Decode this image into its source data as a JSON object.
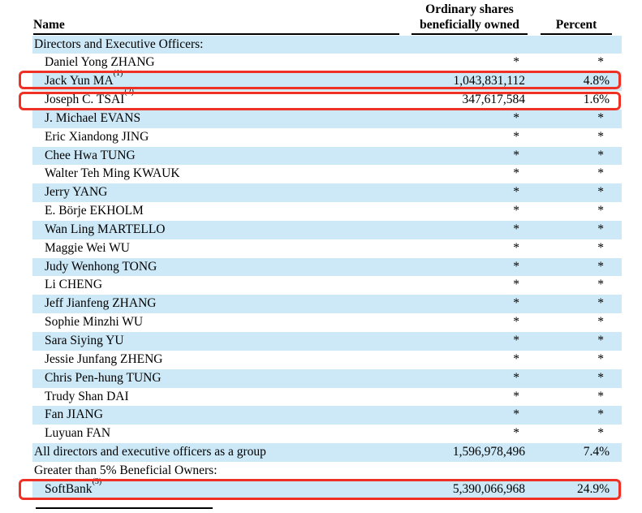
{
  "header": {
    "name_label": "Name",
    "shares_label_line1": "Ordinary shares",
    "shares_label_line2": "beneficially owned",
    "percent_label": "Percent"
  },
  "colors": {
    "row_highlight": "#cde9f7",
    "annotation_box": "#ee3124",
    "text": "#000000"
  },
  "rows": [
    {
      "name": "Directors and Executive Officers:",
      "sup": "",
      "shares": "",
      "percent": "",
      "indent": false,
      "highlight": true,
      "annotated": false
    },
    {
      "name": "Daniel Yong ZHANG",
      "sup": "",
      "shares": "*",
      "percent": "*",
      "indent": true,
      "highlight": false,
      "annotated": false
    },
    {
      "name": "Jack Yun MA",
      "sup": "(1)",
      "shares": "1,043,831,112",
      "percent": "4.8%",
      "indent": true,
      "highlight": true,
      "annotated": true
    },
    {
      "name": "Joseph C. TSAI",
      "sup": "(2)",
      "shares": "347,617,584",
      "percent": "1.6%",
      "indent": true,
      "highlight": false,
      "annotated": true
    },
    {
      "name": "J. Michael EVANS",
      "sup": "",
      "shares": "*",
      "percent": "*",
      "indent": true,
      "highlight": true,
      "annotated": false
    },
    {
      "name": "Eric Xiandong JING",
      "sup": "",
      "shares": "*",
      "percent": "*",
      "indent": true,
      "highlight": false,
      "annotated": false
    },
    {
      "name": "Chee Hwa TUNG",
      "sup": "",
      "shares": "*",
      "percent": "*",
      "indent": true,
      "highlight": true,
      "annotated": false
    },
    {
      "name": "Walter Teh Ming KWAUK",
      "sup": "",
      "shares": "*",
      "percent": "*",
      "indent": true,
      "highlight": false,
      "annotated": false
    },
    {
      "name": "Jerry YANG",
      "sup": "",
      "shares": "*",
      "percent": "*",
      "indent": true,
      "highlight": true,
      "annotated": false
    },
    {
      "name": "E. Börje EKHOLM",
      "sup": "",
      "shares": "*",
      "percent": "*",
      "indent": true,
      "highlight": false,
      "annotated": false
    },
    {
      "name": "Wan Ling MARTELLO",
      "sup": "",
      "shares": "*",
      "percent": "*",
      "indent": true,
      "highlight": true,
      "annotated": false
    },
    {
      "name": "Maggie Wei WU",
      "sup": "",
      "shares": "*",
      "percent": "*",
      "indent": true,
      "highlight": false,
      "annotated": false
    },
    {
      "name": "Judy Wenhong TONG",
      "sup": "",
      "shares": "*",
      "percent": "*",
      "indent": true,
      "highlight": true,
      "annotated": false
    },
    {
      "name": "Li CHENG",
      "sup": "",
      "shares": "*",
      "percent": "*",
      "indent": true,
      "highlight": false,
      "annotated": false
    },
    {
      "name": "Jeff Jianfeng ZHANG",
      "sup": "",
      "shares": "*",
      "percent": "*",
      "indent": true,
      "highlight": true,
      "annotated": false
    },
    {
      "name": "Sophie Minzhi WU",
      "sup": "",
      "shares": "*",
      "percent": "*",
      "indent": true,
      "highlight": false,
      "annotated": false
    },
    {
      "name": "Sara Siying YU",
      "sup": "",
      "shares": "*",
      "percent": "*",
      "indent": true,
      "highlight": true,
      "annotated": false
    },
    {
      "name": "Jessie Junfang ZHENG",
      "sup": "",
      "shares": "*",
      "percent": "*",
      "indent": true,
      "highlight": false,
      "annotated": false
    },
    {
      "name": "Chris Pen-hung TUNG",
      "sup": "",
      "shares": "*",
      "percent": "*",
      "indent": true,
      "highlight": true,
      "annotated": false
    },
    {
      "name": "Trudy Shan DAI",
      "sup": "",
      "shares": "*",
      "percent": "*",
      "indent": true,
      "highlight": false,
      "annotated": false
    },
    {
      "name": "Fan JIANG",
      "sup": "",
      "shares": "*",
      "percent": "*",
      "indent": true,
      "highlight": true,
      "annotated": false
    },
    {
      "name": "Luyuan FAN",
      "sup": "",
      "shares": "*",
      "percent": "*",
      "indent": true,
      "highlight": false,
      "annotated": false
    },
    {
      "name": "All directors and executive officers as a group",
      "sup": "",
      "shares": "1,596,978,496",
      "percent": "7.4%",
      "indent": false,
      "highlight": true,
      "annotated": false
    },
    {
      "name": "Greater than 5% Beneficial Owners:",
      "sup": "",
      "shares": "",
      "percent": "",
      "indent": false,
      "highlight": false,
      "annotated": false
    },
    {
      "name": "SoftBank",
      "sup": "(3)",
      "shares": "5,390,066,968",
      "percent": "24.9%",
      "indent": true,
      "highlight": true,
      "annotated": true
    }
  ]
}
